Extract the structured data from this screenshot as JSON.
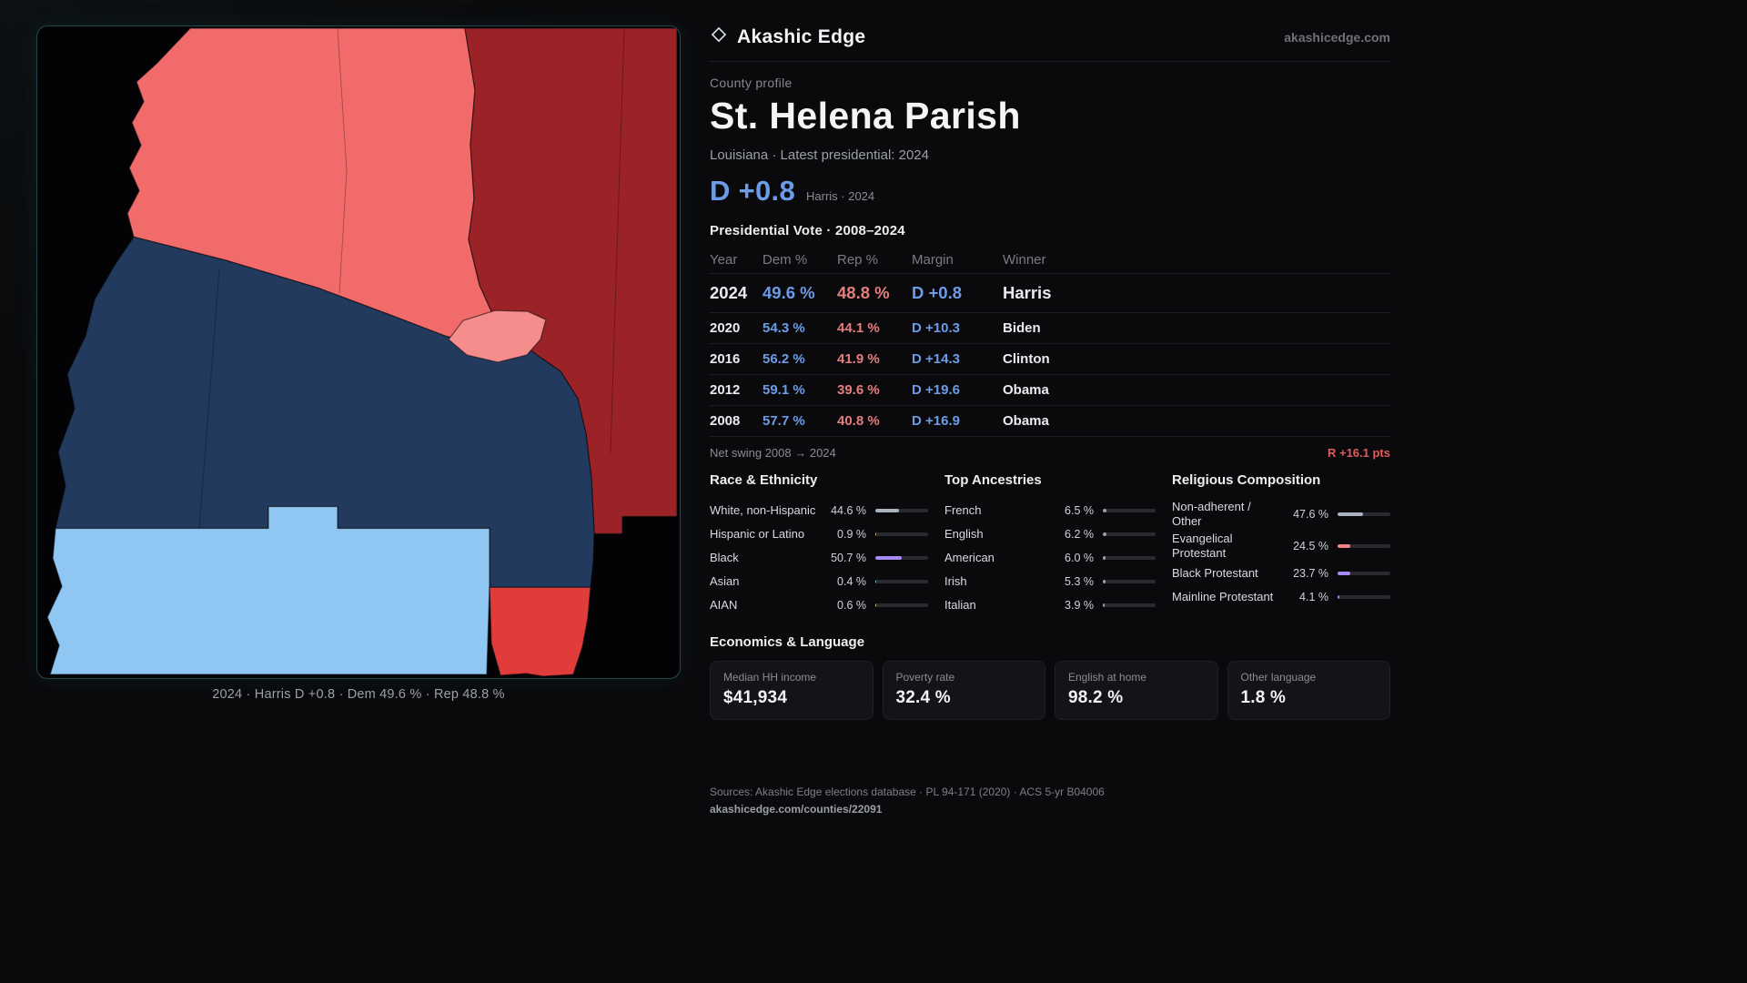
{
  "brand": {
    "name": "Akashic Edge",
    "domain": "akashicedge.com"
  },
  "profile": {
    "eyebrow": "County profile",
    "title": "St. Helena Parish",
    "subtitle": "Louisiana · Latest presidential: 2024",
    "headline_margin": "D +0.8",
    "headline_note": "Harris · 2024"
  },
  "vote_table": {
    "title": "Presidential Vote · 2008–2024",
    "columns": {
      "year": "Year",
      "dem": "Dem %",
      "rep": "Rep %",
      "margin": "Margin",
      "winner": "Winner"
    },
    "rows": [
      {
        "year": "2024",
        "dem": "49.6 %",
        "rep": "48.8 %",
        "margin": "D +0.8",
        "winner": "Harris"
      },
      {
        "year": "2020",
        "dem": "54.3 %",
        "rep": "44.1 %",
        "margin": "D +10.3",
        "winner": "Biden"
      },
      {
        "year": "2016",
        "dem": "56.2 %",
        "rep": "41.9 %",
        "margin": "D +14.3",
        "winner": "Clinton"
      },
      {
        "year": "2012",
        "dem": "59.1 %",
        "rep": "39.6 %",
        "margin": "D +19.6",
        "winner": "Obama"
      },
      {
        "year": "2008",
        "dem": "57.7 %",
        "rep": "40.8 %",
        "margin": "D +16.9",
        "winner": "Obama"
      }
    ],
    "net_swing_label": "Net swing 2008 → 2024",
    "net_swing_value": "R +16.1 pts"
  },
  "demographics": [
    {
      "title": "Race & Ethnicity",
      "rows": [
        {
          "label": "White, non-Hispanic",
          "value": "44.6 %",
          "pct": 44.6,
          "color": "#aab3c0"
        },
        {
          "label": "Hispanic or Latino",
          "value": "0.9 %",
          "pct": 0.9,
          "color": "#d9a05b"
        },
        {
          "label": "Black",
          "value": "50.7 %",
          "pct": 50.7,
          "color": "#a78bfa"
        },
        {
          "label": "Asian",
          "value": "0.4 %",
          "pct": 0.4,
          "color": "#5bc8c4"
        },
        {
          "label": "AIAN",
          "value": "0.6 %",
          "pct": 0.6,
          "color": "#e3c567"
        }
      ]
    },
    {
      "title": "Top Ancestries",
      "rows": [
        {
          "label": "French",
          "value": "6.5 %",
          "pct": 6.5,
          "color": "#9aa3ad"
        },
        {
          "label": "English",
          "value": "6.2 %",
          "pct": 6.2,
          "color": "#9aa3ad"
        },
        {
          "label": "American",
          "value": "6.0 %",
          "pct": 6.0,
          "color": "#9aa3ad"
        },
        {
          "label": "Irish",
          "value": "5.3 %",
          "pct": 5.3,
          "color": "#9aa3ad"
        },
        {
          "label": "Italian",
          "value": "3.9 %",
          "pct": 3.9,
          "color": "#9aa3ad"
        }
      ]
    },
    {
      "title": "Religious Composition",
      "rows": [
        {
          "label": "Non-adherent / Other",
          "value": "47.6 %",
          "pct": 47.6,
          "color": "#aab3c0"
        },
        {
          "label": "Evangelical Protestant",
          "value": "24.5 %",
          "pct": 24.5,
          "color": "#ef8585"
        },
        {
          "label": "Black Protestant",
          "value": "23.7 %",
          "pct": 23.7,
          "color": "#a78bfa"
        },
        {
          "label": "Mainline Protestant",
          "value": "4.1 %",
          "pct": 4.1,
          "color": "#6c9ce8"
        }
      ]
    }
  ],
  "economics": {
    "title": "Economics & Language",
    "stats": [
      {
        "label": "Median HH income",
        "value": "$41,934"
      },
      {
        "label": "Poverty rate",
        "value": "32.4 %"
      },
      {
        "label": "English at home",
        "value": "98.2 %"
      },
      {
        "label": "Other language",
        "value": "1.8 %"
      }
    ]
  },
  "map": {
    "caption": "2024 · Harris D +0.8 · Dem 49.6 % · Rep 48.8 %",
    "colors": {
      "north_pink": "#f26b6b",
      "east_dark_red": "#9b2327",
      "central_navy": "#223a5e",
      "south_light_blue": "#8fc6f2",
      "south_red": "#e03c3c",
      "enclave_pink": "#f58d8d"
    }
  },
  "footer": {
    "sources": "Sources: Akashic Edge elections database · PL 94-171 (2020) · ACS 5-yr B04006",
    "permalink": "akashicedge.com/counties/22091"
  },
  "palette": {
    "dem_blue": "#6c9ce8",
    "rep_red": "#e57d7d",
    "swing_red": "#e05c5c",
    "background": "#0a0a0c"
  }
}
